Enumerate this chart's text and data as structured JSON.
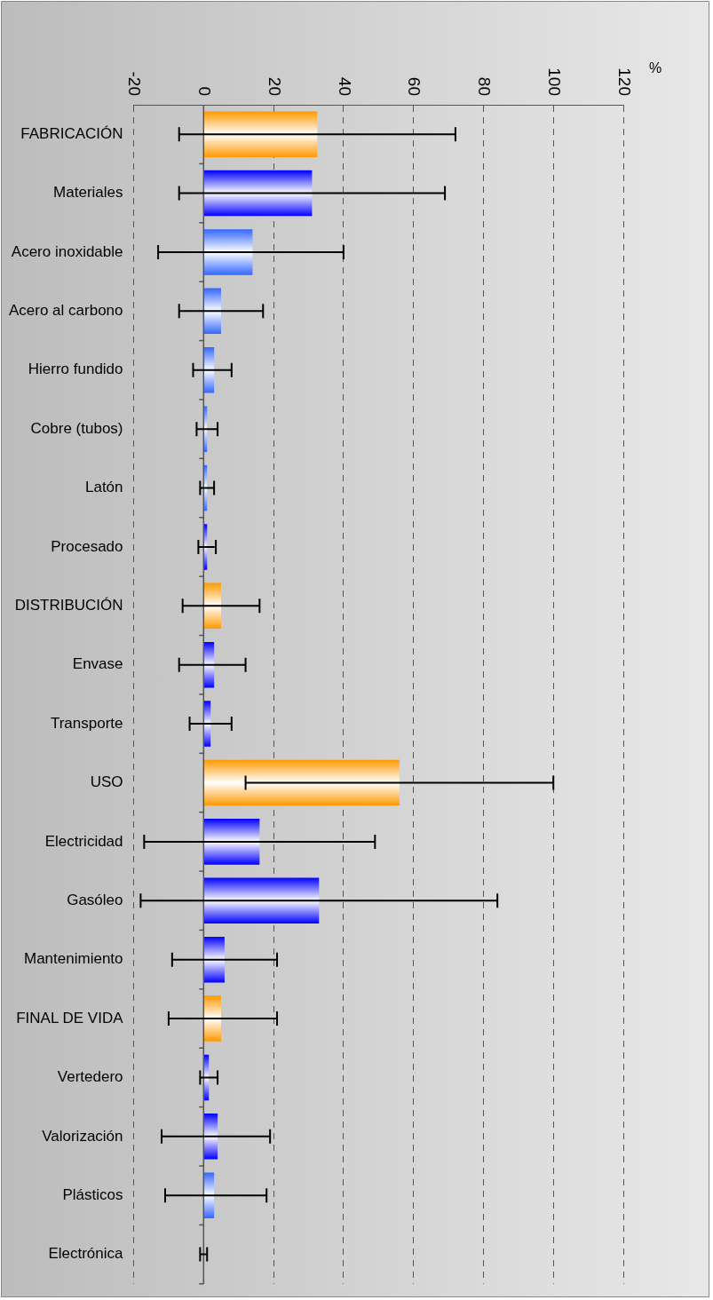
{
  "chart_data": {
    "type": "bar",
    "orientation": "horizontal",
    "xlabel": "%",
    "categories": [
      "FABRICACIÓN",
      "Materiales",
      "Acero inoxidable",
      "Acero al carbono",
      "Hierro fundido",
      "Cobre (tubos)",
      "Latón",
      "Procesado",
      "DISTRIBUCIÓN",
      "Envase",
      "Transporte",
      "USO",
      "Electricidad",
      "Gasóleo",
      "Mantenimiento",
      "FINAL DE VIDA",
      "Vertedero",
      "Valorización",
      "Plásticos",
      "Electrónica"
    ],
    "values": [
      32.5,
      31,
      14,
      5,
      3,
      1,
      1,
      1,
      5,
      3,
      2,
      56,
      16,
      33,
      6,
      5,
      1.5,
      4,
      3,
      0
    ],
    "colors": [
      "#ff9900",
      "#0000ff",
      "#3366ff",
      "#3366ff",
      "#3366ff",
      "#3366ff",
      "#3366ff",
      "#0000ff",
      "#ff9900",
      "#0000ff",
      "#0000ff",
      "#ff9900",
      "#0000ff",
      "#0000ff",
      "#0000ff",
      "#ff9900",
      "#0000ff",
      "#0000ff",
      "#3366ff",
      "#0000ff"
    ],
    "errors": [
      [
        -7,
        72
      ],
      [
        -7,
        69
      ],
      [
        -13,
        40
      ],
      [
        -7,
        17
      ],
      [
        -3,
        8
      ],
      [
        -2,
        4
      ],
      [
        -1,
        3
      ],
      [
        -1.5,
        3.5
      ],
      [
        -6,
        16
      ],
      [
        -7,
        12
      ],
      [
        -4,
        8
      ],
      [
        12,
        100
      ],
      [
        -17,
        49
      ],
      [
        -18,
        84
      ],
      [
        -9,
        21
      ],
      [
        -10,
        21
      ],
      [
        -1,
        4
      ],
      [
        -12,
        19
      ],
      [
        -11,
        18
      ],
      [
        -1,
        1
      ]
    ],
    "xlim": [
      -20,
      120
    ],
    "xticks": [
      -20,
      0,
      20,
      40,
      60,
      80,
      100,
      120
    ],
    "grid": "x",
    "ref_lines": [
      {
        "axis": "x",
        "value": 0,
        "color": "#555555",
        "line_style": "solid"
      }
    ]
  }
}
